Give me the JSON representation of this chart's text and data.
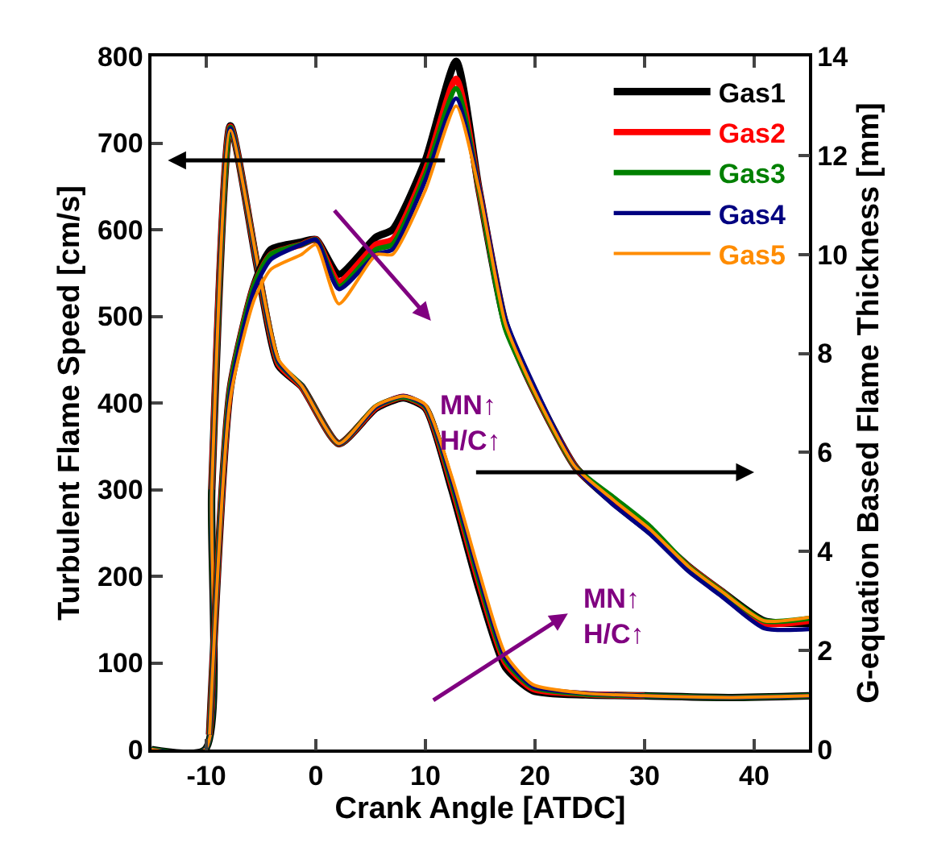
{
  "chart_data": {
    "type": "line",
    "xlabel": "Crank Angle [ATDC]",
    "ylabel": "Turbulent Flame Speed [cm/s]",
    "y2label": "G-equation Based Flame Thickness [mm]",
    "xlim": [
      -15,
      45
    ],
    "xticks": [
      -10,
      0,
      10,
      20,
      30,
      40
    ],
    "ylim": [
      0,
      800
    ],
    "yticks": [
      0,
      100,
      200,
      300,
      400,
      500,
      600,
      700,
      800
    ],
    "y2lim": [
      0,
      14
    ],
    "y2ticks": [
      0,
      2,
      4,
      6,
      8,
      10,
      12,
      14
    ],
    "legend": "top right",
    "marker": "none",
    "line_style": "solid",
    "series": [
      {
        "name": "Gas1",
        "color": "#000000",
        "x": [
          -15,
          -10.1,
          -9.5,
          -7.8,
          -5.3,
          -3.4,
          -1.3,
          2.1,
          5.5,
          8,
          10,
          12.4,
          14.9,
          17.3,
          19.8,
          24.6,
          30,
          38,
          45
        ],
        "values": [
          0,
          0,
          300,
          720,
          554,
          443,
          419,
          353,
          394,
          406,
          394,
          300,
          185,
          95,
          68,
          63,
          62,
          60,
          62
        ]
      },
      {
        "name": "Gas2",
        "color": "#ff0000",
        "x": [
          -9.5,
          -7.8,
          -5.3,
          -3.4,
          -1.3,
          2.1,
          5.5,
          8,
          10,
          12.4,
          14.9,
          17.3,
          19.8,
          24.6,
          30
        ],
        "values": [
          300,
          719,
          556,
          445,
          419,
          353,
          395,
          407,
          395,
          305,
          192,
          100,
          70,
          64,
          62
        ]
      },
      {
        "name": "Gas3",
        "color": "#008000",
        "x": [
          -15,
          -10.1,
          -9.5,
          -7.8,
          -5.3,
          -3.4,
          -1.3,
          2.1,
          5.5,
          8,
          10,
          12.4,
          14.9,
          17.3,
          19.8,
          24.6,
          30,
          38,
          45
        ],
        "values": [
          0,
          0,
          300,
          718,
          557,
          447,
          420,
          353,
          396,
          407,
          396,
          308,
          196,
          103,
          72,
          64,
          62,
          60,
          62
        ]
      },
      {
        "name": "Gas4",
        "color": "#000080",
        "x": [
          -15,
          -10.1,
          -9.5,
          -7.8,
          -5.3,
          -3.4,
          -1.3,
          2.1,
          5.5,
          8,
          10,
          12.4,
          14.9,
          17.3,
          19.8,
          24.6,
          30,
          38,
          45
        ],
        "values": [
          0,
          0,
          300,
          717,
          558,
          448,
          420,
          353,
          396,
          408,
          397,
          311,
          200,
          106,
          73,
          65,
          62,
          60,
          62
        ]
      },
      {
        "name": "Gas5",
        "color": "#ff8c00",
        "x": [
          -15,
          -10.1,
          -9.5,
          -7.8,
          -5.3,
          -3.4,
          -1.3,
          2.1,
          5.5,
          8,
          10,
          12.4,
          14.9,
          17.3,
          19.8,
          24.6,
          30,
          38,
          45
        ],
        "values": [
          0,
          0,
          300,
          715,
          560,
          450,
          420,
          353,
          397,
          408,
          398,
          315,
          205,
          110,
          75,
          65,
          62,
          60,
          62
        ]
      },
      {
        "color": "#000000",
        "axis": "y2",
        "x": [
          -9.7,
          -7.8,
          -5.6,
          -4.1,
          -1.3,
          0,
          2.1,
          5.5,
          7,
          10,
          12.8,
          14.9,
          17.3,
          19.8,
          23.7,
          27.1,
          30.5,
          34,
          37,
          40.9,
          45
        ],
        "values": [
          0.3,
          7.3,
          9.4,
          10.1,
          10.25,
          10.3,
          9.6,
          10.35,
          10.5,
          11.9,
          13.9,
          11.3,
          8.6,
          7.3,
          5.7,
          5.0,
          4.4,
          3.7,
          3.2,
          2.6,
          2.55
        ]
      },
      {
        "color": "#ff0000",
        "axis": "y2",
        "x": [
          -9.7,
          -7.8,
          -5.6,
          -4.1,
          -1.3,
          0,
          2.1,
          5.5,
          7,
          10,
          12.8,
          14.9,
          17.3,
          19.8,
          23.7,
          27.1,
          30.5,
          34,
          37,
          40.9,
          45
        ],
        "values": [
          0.3,
          7.3,
          9.4,
          10.0,
          10.2,
          10.3,
          9.45,
          10.2,
          10.3,
          11.7,
          13.55,
          11.3,
          8.6,
          7.3,
          5.7,
          5.0,
          4.4,
          3.7,
          3.2,
          2.55,
          2.6
        ]
      },
      {
        "color": "#008000",
        "axis": "y2",
        "x": [
          -9.7,
          -7.8,
          -5.6,
          -4.1,
          -1.3,
          0,
          2.1,
          5.5,
          7,
          10,
          12.8,
          14.9,
          17.3,
          19.8,
          23.7,
          27.1,
          30.5,
          34,
          37,
          40.9,
          45
        ],
        "values": [
          0.3,
          7.3,
          9.4,
          10.0,
          10.2,
          10.3,
          9.35,
          10.1,
          10.2,
          11.6,
          13.35,
          11.3,
          8.5,
          7.3,
          5.7,
          5.1,
          4.5,
          3.7,
          3.2,
          2.6,
          2.65
        ]
      },
      {
        "color": "#000080",
        "axis": "y2",
        "x": [
          -9.7,
          -7.8,
          -5.6,
          -4.1,
          -1.3,
          0,
          2.1,
          5.5,
          7,
          10,
          12.8,
          14.9,
          17.3,
          19.8,
          23.7,
          27.1,
          30.5,
          34,
          37,
          40.9,
          45
        ],
        "values": [
          0.3,
          7.2,
          9.3,
          9.9,
          10.2,
          10.3,
          9.3,
          10.0,
          10.1,
          11.5,
          13.15,
          11.35,
          8.7,
          7.4,
          5.7,
          4.95,
          4.35,
          3.6,
          3.1,
          2.45,
          2.43
        ]
      },
      {
        "color": "#ff8c00",
        "axis": "y2",
        "x": [
          -9.7,
          -7.8,
          -5.6,
          -4.1,
          -1.3,
          0,
          2.1,
          5.5,
          7,
          10,
          12.8,
          14.9,
          17.3,
          19.8,
          23.7,
          27.1,
          30.5,
          34,
          37,
          40.9,
          45
        ],
        "values": [
          0.3,
          7.1,
          9.1,
          9.7,
          10.0,
          10.2,
          9.0,
          10.0,
          10.0,
          11.3,
          13.0,
          11.3,
          8.6,
          7.3,
          5.7,
          5.05,
          4.45,
          3.7,
          3.2,
          2.6,
          2.67
        ]
      }
    ],
    "annotations": [
      "MN↑\nH/C↑",
      "MN↑\nH/C↑"
    ]
  }
}
